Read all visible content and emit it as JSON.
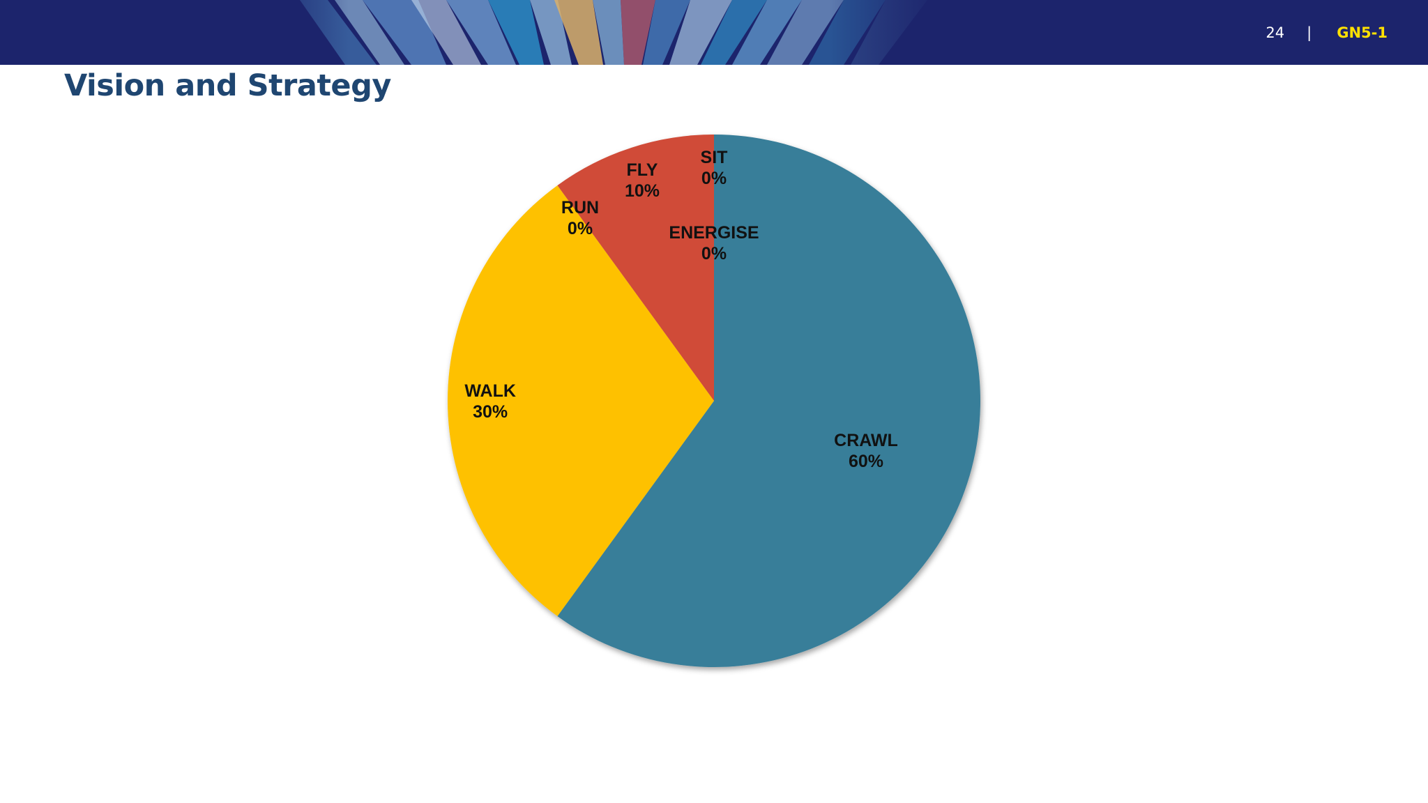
{
  "header": {
    "page_number": "24",
    "separator": "|",
    "doc_code": "GN5-1"
  },
  "title": "Vision and Strategy",
  "colors": {
    "header_bg": "#1c246c",
    "title": "#1f4671",
    "doc_code": "#ffe100"
  },
  "chart_data": {
    "type": "pie",
    "title": "",
    "legend": "none",
    "slices": [
      {
        "label": "CRAWL",
        "value": 60,
        "display": "60%",
        "color": "#387e99"
      },
      {
        "label": "WALK",
        "value": 30,
        "display": "30%",
        "color": "#fec100"
      },
      {
        "label": "RUN",
        "value": 0,
        "display": "0%",
        "color": "#fec100"
      },
      {
        "label": "FLY",
        "value": 10,
        "display": "10%",
        "color": "#d04c37"
      },
      {
        "label": "SIT",
        "value": 0,
        "display": "0%",
        "color": "#d04c37"
      },
      {
        "label": "ENERGISE",
        "value": 0,
        "display": "0%",
        "color": "#387e99"
      }
    ]
  }
}
